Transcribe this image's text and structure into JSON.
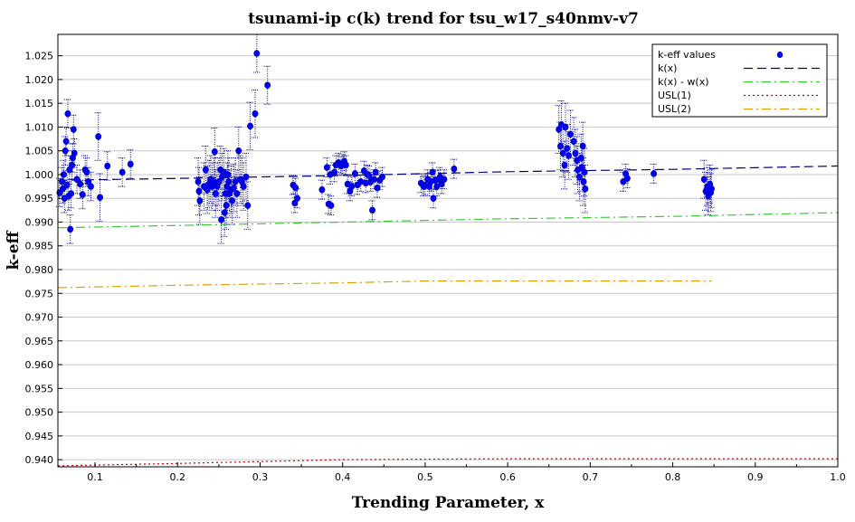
{
  "chart_data": {
    "type": "scatter",
    "title": "tsunami-ip c(k) trend for tsu_w17_s40nmv-v7",
    "xlabel": "Trending Parameter, x",
    "ylabel": "k-eff",
    "xlim": [
      0.055,
      1.0
    ],
    "ylim": [
      0.9385,
      1.0295
    ],
    "x_ticks": [
      0.1,
      0.2,
      0.3,
      0.4,
      0.5,
      0.6,
      0.7,
      0.8,
      0.9,
      1.0
    ],
    "x_tick_labels": [
      "0.1",
      "0.2",
      "0.3",
      "0.4",
      "0.5",
      "0.6",
      "0.7",
      "0.8",
      "0.9",
      "1.0"
    ],
    "y_ticks": [
      0.94,
      0.945,
      0.95,
      0.955,
      0.96,
      0.965,
      0.97,
      0.975,
      0.98,
      0.985,
      0.99,
      0.995,
      1.0,
      1.005,
      1.01,
      1.015,
      1.02,
      1.025
    ],
    "y_tick_labels": [
      "0.940",
      "0.945",
      "0.950",
      "0.955",
      "0.960",
      "0.965",
      "0.970",
      "0.975",
      "0.980",
      "0.985",
      "0.990",
      "0.995",
      "1.000",
      "1.005",
      "1.010",
      "1.015",
      "1.020",
      "1.025"
    ],
    "grid": "horizontal",
    "legend_position": "top-right",
    "legend": [
      "k-eff values",
      "k(x)",
      "k(x) - w(x)",
      "USL(1)",
      "USL(2)"
    ],
    "colors": {
      "points": "#0000ee",
      "kx": "#000080",
      "kx_minus_wx": "#33cc33",
      "usl1": "#cc0000",
      "usl2": "#e0a000"
    },
    "points": [
      [
        0.057,
        0.9962,
        0.003
      ],
      [
        0.06,
        0.9985,
        0.003
      ],
      [
        0.061,
        0.997,
        0.003
      ],
      [
        0.062,
        1.0,
        0.003
      ],
      [
        0.063,
        0.995,
        0.003
      ],
      [
        0.064,
        1.005,
        0.003
      ],
      [
        0.065,
        1.007,
        0.003
      ],
      [
        0.066,
        0.9978,
        0.003
      ],
      [
        0.067,
        1.0128,
        0.003
      ],
      [
        0.068,
        0.9955,
        0.003
      ],
      [
        0.069,
        1.001,
        0.003
      ],
      [
        0.07,
        0.9885,
        0.003
      ],
      [
        0.071,
        0.996,
        0.003
      ],
      [
        0.072,
        1.002,
        0.003
      ],
      [
        0.073,
        1.0035,
        0.003
      ],
      [
        0.074,
        1.0095,
        0.003
      ],
      [
        0.075,
        1.0045,
        0.003
      ],
      [
        0.078,
        0.999,
        0.003
      ],
      [
        0.082,
        0.998,
        0.003
      ],
      [
        0.085,
        0.9958,
        0.003
      ],
      [
        0.088,
        1.001,
        0.003
      ],
      [
        0.09,
        1.0005,
        0.003
      ],
      [
        0.092,
        0.9985,
        0.003
      ],
      [
        0.095,
        0.9975,
        0.003
      ],
      [
        0.104,
        1.008,
        0.005
      ],
      [
        0.106,
        0.9952,
        0.005
      ],
      [
        0.115,
        1.0018,
        0.003
      ],
      [
        0.133,
        1.0005,
        0.003
      ],
      [
        0.143,
        1.0022,
        0.003
      ],
      [
        0.225,
        0.9985,
        0.005
      ],
      [
        0.226,
        0.9965,
        0.005
      ],
      [
        0.227,
        0.9945,
        0.005
      ],
      [
        0.232,
        0.9975,
        0.005
      ],
      [
        0.234,
        1.001,
        0.005
      ],
      [
        0.236,
        0.9968,
        0.005
      ],
      [
        0.238,
        0.998,
        0.005
      ],
      [
        0.24,
        0.999,
        0.005
      ],
      [
        0.242,
        0.9975,
        0.005
      ],
      [
        0.244,
        0.9985,
        0.005
      ],
      [
        0.245,
        1.0048,
        0.005
      ],
      [
        0.246,
        0.996,
        0.005
      ],
      [
        0.248,
        0.9975,
        0.005
      ],
      [
        0.25,
        0.9985,
        0.005
      ],
      [
        0.252,
        1.001,
        0.005
      ],
      [
        0.253,
        0.9905,
        0.005
      ],
      [
        0.254,
        0.9995,
        0.005
      ],
      [
        0.256,
        1.0005,
        0.005
      ],
      [
        0.257,
        0.992,
        0.005
      ],
      [
        0.258,
        0.996,
        0.005
      ],
      [
        0.259,
        0.9935,
        0.005
      ],
      [
        0.26,
        0.9975,
        0.005
      ],
      [
        0.261,
        1.0,
        0.005
      ],
      [
        0.262,
        0.9985,
        0.005
      ],
      [
        0.263,
        0.996,
        0.005
      ],
      [
        0.265,
        0.9968,
        0.005
      ],
      [
        0.266,
        0.9945,
        0.005
      ],
      [
        0.268,
        0.9972,
        0.005
      ],
      [
        0.27,
        0.9985,
        0.005
      ],
      [
        0.272,
        0.996,
        0.005
      ],
      [
        0.274,
        1.005,
        0.005
      ],
      [
        0.276,
        0.999,
        0.005
      ],
      [
        0.278,
        0.9985,
        0.005
      ],
      [
        0.28,
        0.9975,
        0.005
      ],
      [
        0.283,
        0.9995,
        0.005
      ],
      [
        0.285,
        0.9935,
        0.005
      ],
      [
        0.288,
        1.0102,
        0.005
      ],
      [
        0.294,
        1.0128,
        0.005
      ],
      [
        0.296,
        1.0255,
        0.004
      ],
      [
        0.309,
        1.0188,
        0.004
      ],
      [
        0.34,
        0.9978,
        0.002
      ],
      [
        0.342,
        0.994,
        0.002
      ],
      [
        0.343,
        0.9972,
        0.002
      ],
      [
        0.345,
        0.995,
        0.002
      ],
      [
        0.375,
        0.9968,
        0.002
      ],
      [
        0.381,
        1.0015,
        0.002
      ],
      [
        0.383,
        0.9938,
        0.002
      ],
      [
        0.385,
        1.0,
        0.002
      ],
      [
        0.386,
        0.9935,
        0.002
      ],
      [
        0.39,
        1.0005,
        0.002
      ],
      [
        0.392,
        1.002,
        0.002
      ],
      [
        0.395,
        1.0025,
        0.002
      ],
      [
        0.398,
        1.0018,
        0.002
      ],
      [
        0.4,
        1.0022,
        0.002
      ],
      [
        0.402,
        1.0028,
        0.002
      ],
      [
        0.404,
        1.002,
        0.002
      ],
      [
        0.406,
        0.998,
        0.002
      ],
      [
        0.409,
        0.9965,
        0.002
      ],
      [
        0.411,
        0.9975,
        0.002
      ],
      [
        0.415,
        1.0002,
        0.002
      ],
      [
        0.418,
        0.9978,
        0.002
      ],
      [
        0.422,
        0.9985,
        0.002
      ],
      [
        0.426,
        1.0008,
        0.002
      ],
      [
        0.428,
        0.9982,
        0.002
      ],
      [
        0.43,
        1.0,
        0.002
      ],
      [
        0.432,
        0.9998,
        0.002
      ],
      [
        0.434,
        0.9985,
        0.002
      ],
      [
        0.436,
        0.9925,
        0.002
      ],
      [
        0.438,
        0.999,
        0.002
      ],
      [
        0.44,
        1.0005,
        0.002
      ],
      [
        0.442,
        0.9972,
        0.002
      ],
      [
        0.445,
        0.9988,
        0.002
      ],
      [
        0.448,
        0.9995,
        0.002
      ],
      [
        0.495,
        0.9982,
        0.002
      ],
      [
        0.498,
        0.9975,
        0.002
      ],
      [
        0.5,
        0.9978,
        0.002
      ],
      [
        0.503,
        0.999,
        0.002
      ],
      [
        0.505,
        0.9975,
        0.002
      ],
      [
        0.507,
        0.9985,
        0.002
      ],
      [
        0.509,
        1.0005,
        0.002
      ],
      [
        0.51,
        0.995,
        0.002
      ],
      [
        0.512,
        0.9988,
        0.002
      ],
      [
        0.514,
        0.9975,
        0.002
      ],
      [
        0.516,
        0.999,
        0.002
      ],
      [
        0.518,
        0.9995,
        0.002
      ],
      [
        0.52,
        0.998,
        0.002
      ],
      [
        0.523,
        0.999,
        0.002
      ],
      [
        0.535,
        1.0012,
        0.002
      ],
      [
        0.662,
        1.0095,
        0.005
      ],
      [
        0.664,
        1.006,
        0.005
      ],
      [
        0.665,
        1.0105,
        0.005
      ],
      [
        0.667,
        1.0045,
        0.005
      ],
      [
        0.669,
        1.002,
        0.005
      ],
      [
        0.67,
        1.01,
        0.005
      ],
      [
        0.672,
        1.0055,
        0.005
      ],
      [
        0.674,
        1.004,
        0.005
      ],
      [
        0.676,
        1.0085,
        0.005
      ],
      [
        0.68,
        1.007,
        0.005
      ],
      [
        0.682,
        1.0045,
        0.005
      ],
      [
        0.684,
        1.003,
        0.005
      ],
      [
        0.685,
        1.001,
        0.005
      ],
      [
        0.687,
        0.9995,
        0.005
      ],
      [
        0.689,
        1.0035,
        0.005
      ],
      [
        0.69,
        1.0015,
        0.005
      ],
      [
        0.691,
        1.006,
        0.005
      ],
      [
        0.692,
        0.9985,
        0.005
      ],
      [
        0.693,
        1.0005,
        0.005
      ],
      [
        0.694,
        0.997,
        0.005
      ],
      [
        0.74,
        0.9985,
        0.002
      ],
      [
        0.743,
        1.0002,
        0.002
      ],
      [
        0.745,
        0.9992,
        0.002
      ],
      [
        0.777,
        1.0002,
        0.002
      ],
      [
        0.838,
        0.999,
        0.004
      ],
      [
        0.84,
        0.9965,
        0.004
      ],
      [
        0.842,
        0.9975,
        0.004
      ],
      [
        0.843,
        0.9955,
        0.004
      ],
      [
        0.845,
        0.998,
        0.004
      ],
      [
        0.846,
        0.9962,
        0.004
      ],
      [
        0.847,
        0.997,
        0.004
      ]
    ],
    "series": [
      {
        "name": "k(x)",
        "x": [
          0.055,
          0.2,
          0.4,
          0.6,
          0.8,
          1.0
        ],
        "y": [
          0.9988,
          0.9992,
          0.9998,
          1.0006,
          1.0011,
          1.0018
        ]
      },
      {
        "name": "k(x) - w(x)",
        "x": [
          0.055,
          0.2,
          0.4,
          0.6,
          0.8,
          1.0
        ],
        "y": [
          0.9888,
          0.9893,
          0.99,
          0.9907,
          0.9912,
          0.992
        ]
      },
      {
        "name": "USL(1)",
        "x": [
          0.055,
          0.2,
          0.4,
          0.6,
          0.8,
          1.0
        ],
        "y": [
          0.9387,
          0.9392,
          0.94,
          0.9402,
          0.9402,
          0.9402
        ]
      },
      {
        "name": "USL(2)",
        "x": [
          0.055,
          0.2,
          0.4,
          0.5,
          0.7,
          0.847
        ],
        "y": [
          0.9762,
          0.9767,
          0.9772,
          0.9776,
          0.9776,
          0.9776
        ]
      }
    ]
  }
}
